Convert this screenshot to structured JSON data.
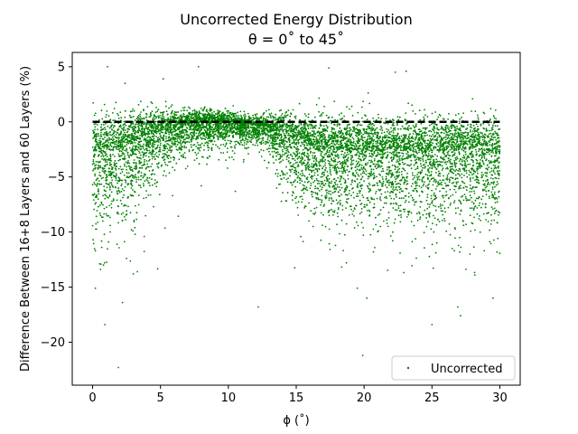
{
  "chart_data": {
    "type": "scatter",
    "title": "Uncorrected Energy Distribution",
    "subtitle": "θ = 0˚ to 45˚",
    "xlabel": "ϕ (˚)",
    "ylabel": "Difference Between 16+8 Layers and 60 Layers (%)",
    "xlim": [
      -1.5,
      31.5
    ],
    "ylim": [
      -23.9,
      6.3
    ],
    "xticks": [
      0,
      5,
      10,
      15,
      20,
      25,
      30
    ],
    "yticks": [
      5,
      0,
      -5,
      -10,
      -15,
      -20
    ],
    "grid": false,
    "legend_position": "lower-right",
    "reference_line": {
      "y": 0,
      "x_range": [
        0,
        30
      ],
      "style": "dashed",
      "color": "#000000"
    },
    "series": [
      {
        "name": "Uncorrected",
        "color": "#008000",
        "marker": "point",
        "approx_point_count": 8000,
        "trend": {
          "x": [
            0,
            2,
            4,
            6,
            8,
            10,
            11,
            12,
            13,
            14,
            15,
            17,
            20,
            23,
            25,
            28,
            30
          ],
          "y_median": [
            -2.8,
            -2.5,
            -1.2,
            -0.4,
            -0.1,
            0.0,
            -0.2,
            -0.3,
            -0.5,
            -1.0,
            -1.8,
            -2.3,
            -2.6,
            -2.6,
            -2.7,
            -2.4,
            -2.8
          ],
          "y_spread": [
            2.8,
            2.6,
            1.8,
            1.1,
            1.0,
            0.8,
            0.6,
            0.6,
            0.9,
            1.5,
            2.0,
            2.2,
            2.3,
            2.3,
            2.4,
            2.3,
            2.5
          ]
        },
        "outliers": [
          {
            "x": 0.2,
            "y": -11.7
          },
          {
            "x": 0.2,
            "y": -15.1
          },
          {
            "x": 0.8,
            "y": -13.0
          },
          {
            "x": 0.9,
            "y": -18.4
          },
          {
            "x": 1.1,
            "y": 5.0
          },
          {
            "x": 1.9,
            "y": -22.3
          },
          {
            "x": 2.2,
            "y": -16.4
          },
          {
            "x": 2.5,
            "y": -12.4
          },
          {
            "x": 3.0,
            "y": -13.8
          },
          {
            "x": 3.3,
            "y": -13.6
          },
          {
            "x": 3.8,
            "y": -10.4
          },
          {
            "x": 5.2,
            "y": 3.9
          },
          {
            "x": 7.8,
            "y": 5.0
          },
          {
            "x": 12.2,
            "y": -16.8
          },
          {
            "x": 17.4,
            "y": 4.9
          },
          {
            "x": 18.7,
            "y": -12.8
          },
          {
            "x": 19.5,
            "y": -15.1
          },
          {
            "x": 19.9,
            "y": -21.2
          },
          {
            "x": 20.2,
            "y": -16.0
          },
          {
            "x": 22.3,
            "y": 4.5
          },
          {
            "x": 23.1,
            "y": 4.6
          },
          {
            "x": 25.0,
            "y": -18.4
          },
          {
            "x": 26.9,
            "y": -16.8
          },
          {
            "x": 27.1,
            "y": -17.6
          },
          {
            "x": 29.5,
            "y": -16.0
          },
          {
            "x": 26.5,
            "y": -11.5
          },
          {
            "x": 27.8,
            "y": -12.0
          }
        ]
      }
    ]
  }
}
